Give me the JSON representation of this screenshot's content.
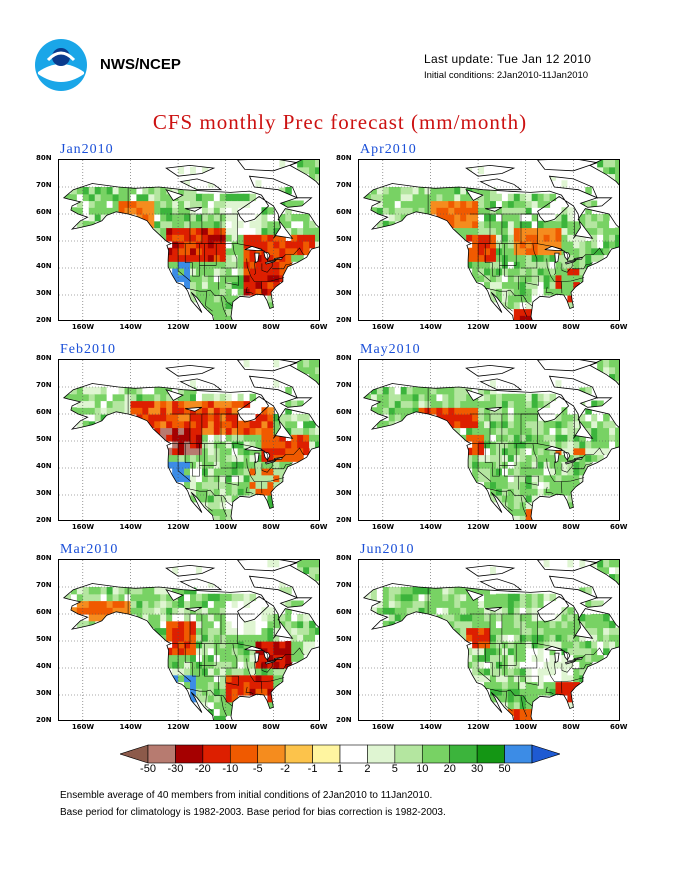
{
  "header": {
    "org": "NWS/NCEP",
    "last_update": "Last update: Tue Jan 12 2010",
    "initial_conditions": "Initial conditions: 2Jan2010-11Jan2010"
  },
  "title": "CFS monthly Prec forecast (mm/month)",
  "panels": [
    {
      "title": "Jan2010"
    },
    {
      "title": "Feb2010"
    },
    {
      "title": "Mar2010"
    },
    {
      "title": "Apr2010"
    },
    {
      "title": "May2010"
    },
    {
      "title": "Jun2010"
    }
  ],
  "lat_labels": [
    "80N",
    "70N",
    "60N",
    "50N",
    "40N",
    "30N",
    "20N"
  ],
  "lon_labels": [
    "160W",
    "140W",
    "120W",
    "100W",
    "80W",
    "60W"
  ],
  "colorbar": {
    "labels": [
      "-50",
      "-30",
      "-20",
      "-10",
      "-5",
      "-2",
      "-1",
      "1",
      "2",
      "5",
      "10",
      "20",
      "30",
      "50"
    ],
    "colors": [
      "#8c5a4a",
      "#b77b70",
      "#a50000",
      "#dd1f00",
      "#f05a00",
      "#f58c1e",
      "#fcc34b",
      "#fff5a0",
      "#ffffff",
      "#dff5d2",
      "#b4e6a0",
      "#78d264",
      "#3cb43c",
      "#149614",
      "#3c8ce6",
      "#1e5ad2"
    ]
  },
  "footer": {
    "line1": "Ensemble average of 40 members from initial conditions of 2Jan2010 to 11Jan2010.",
    "line2": "Base period for climatology is 1982-2003. Base period for bias correction is 1982-2003."
  }
}
